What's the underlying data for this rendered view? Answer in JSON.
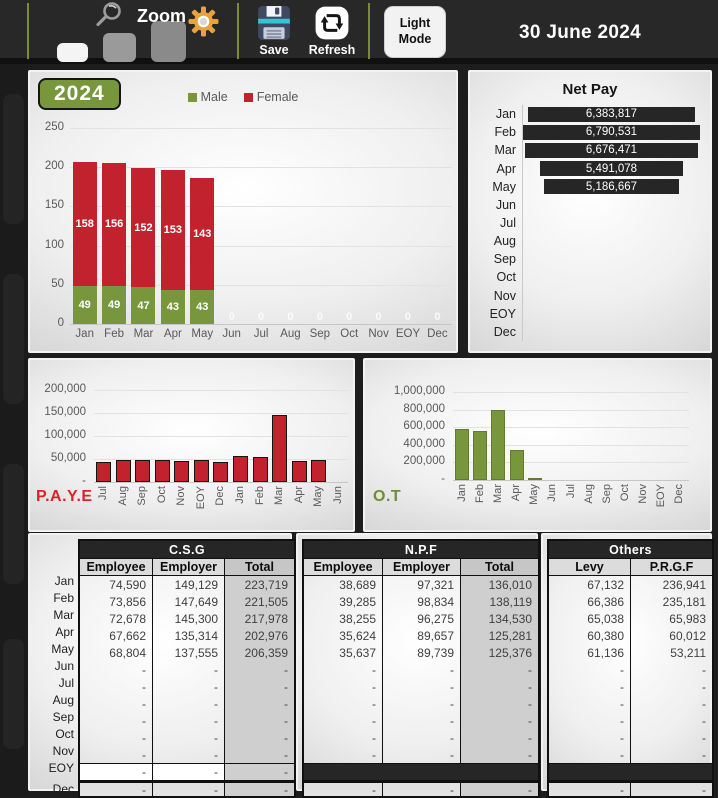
{
  "toolbar": {
    "zoom_label": "Zoom",
    "save_label": "Save",
    "refresh_label": "Refresh",
    "light_mode_label": "Light Mode",
    "date": "30 June 2024"
  },
  "colors": {
    "male_green": "#78973D",
    "female_red": "#C2222E",
    "net_pay_bar": "#262626",
    "paye_label": "#E0202A",
    "ot_label": "#6F8C36",
    "divider_olive": "#7B8D33"
  },
  "chart_data": [
    {
      "type": "bar",
      "subtype": "stacked",
      "year": "2024",
      "legend": [
        "Male",
        "Female"
      ],
      "categories": [
        "Jan",
        "Feb",
        "Mar",
        "Apr",
        "May",
        "Jun",
        "Jul",
        "Aug",
        "Sep",
        "Oct",
        "Nov",
        "EOY",
        "Dec"
      ],
      "series": [
        {
          "name": "Male",
          "color": "#78973D",
          "values": [
            49,
            49,
            47,
            43,
            43,
            0,
            0,
            0,
            0,
            0,
            0,
            0,
            0
          ]
        },
        {
          "name": "Female",
          "color": "#C2222E",
          "values": [
            158,
            156,
            152,
            153,
            143,
            0,
            0,
            0,
            0,
            0,
            0,
            0,
            0
          ]
        }
      ],
      "ylim": [
        0,
        250
      ],
      "yticks": [
        "250",
        "200",
        "150",
        "100",
        "50",
        "0"
      ]
    },
    {
      "type": "bar",
      "subtype": "funnel-horizontal",
      "title": "Net Pay",
      "categories": [
        "Jan",
        "Feb",
        "Mar",
        "Apr",
        "May",
        "Jun",
        "Jul",
        "Aug",
        "Sep",
        "Oct",
        "Nov",
        "EOY",
        "Dec"
      ],
      "values": [
        6383817,
        6790531,
        6676471,
        5491078,
        5186667,
        null,
        null,
        null,
        null,
        null,
        null,
        null,
        null
      ]
    },
    {
      "type": "bar",
      "label": "P.A.Y.E",
      "categories": [
        "Jul",
        "Aug",
        "Sep",
        "Oct",
        "Nov",
        "EOY",
        "Dec",
        "Jan",
        "Feb",
        "Mar",
        "Apr",
        "May",
        "Jun"
      ],
      "values": [
        43500,
        48500,
        48500,
        48500,
        46500,
        48500,
        44500,
        57500,
        53500,
        146000,
        46500,
        48500,
        0
      ],
      "ylim": [
        0,
        200000
      ],
      "yticks": [
        "200,000",
        "150,000",
        "100,000",
        "50,000",
        "-"
      ]
    },
    {
      "type": "bar",
      "label": "O.T",
      "categories": [
        "Jan",
        "Feb",
        "Mar",
        "Apr",
        "May",
        "Jun",
        "Jul",
        "Aug",
        "Sep",
        "Oct",
        "Nov",
        "EOY",
        "Dec"
      ],
      "values": [
        585000,
        555000,
        795000,
        345000,
        20000,
        0,
        0,
        0,
        0,
        0,
        0,
        0,
        0
      ],
      "ylim": [
        0,
        1000000
      ],
      "yticks": [
        "1,000,000",
        "800,000",
        "600,000",
        "400,000",
        "200,000",
        "-"
      ]
    }
  ],
  "tables": {
    "months": [
      "Jan",
      "Feb",
      "Mar",
      "Apr",
      "May",
      "Jun",
      "Jul",
      "Aug",
      "Sep",
      "Oct",
      "Nov",
      "EOY",
      "Dec"
    ],
    "groups": [
      {
        "title": "C.S.G",
        "columns": [
          "Employee",
          "Employer",
          "Total"
        ],
        "rows": [
          [
            "74,590",
            "149,129",
            "223,719"
          ],
          [
            "73,856",
            "147,649",
            "221,505"
          ],
          [
            "72,678",
            "145,300",
            "217,978"
          ],
          [
            "67,662",
            "135,314",
            "202,976"
          ],
          [
            "68,804",
            "137,555",
            "206,359"
          ],
          [
            "-",
            "-",
            "-"
          ],
          [
            "-",
            "-",
            "-"
          ],
          [
            "-",
            "-",
            "-"
          ],
          [
            "-",
            "-",
            "-"
          ],
          [
            "-",
            "-",
            "-"
          ],
          [
            "-",
            "-",
            "-"
          ]
        ],
        "eoy_style": "white",
        "eoy": [
          "-",
          "-",
          "-"
        ],
        "dec": [
          "-",
          "-",
          "-"
        ]
      },
      {
        "title": "N.P.F",
        "columns": [
          "Employee",
          "Employer",
          "Total"
        ],
        "rows": [
          [
            "38,689",
            "97,321",
            "136,010"
          ],
          [
            "39,285",
            "98,834",
            "138,119"
          ],
          [
            "38,255",
            "96,275",
            "134,530"
          ],
          [
            "35,624",
            "89,657",
            "125,281"
          ],
          [
            "35,637",
            "89,739",
            "125,376"
          ],
          [
            "-",
            "-",
            "-"
          ],
          [
            "-",
            "-",
            "-"
          ],
          [
            "-",
            "-",
            "-"
          ],
          [
            "-",
            "-",
            "-"
          ],
          [
            "-",
            "-",
            "-"
          ],
          [
            "-",
            "-",
            "-"
          ]
        ],
        "eoy_style": "dark",
        "eoy": [],
        "dec": [
          "-",
          "-",
          "-"
        ]
      },
      {
        "title": "Others",
        "columns": [
          "Levy",
          "P.R.G.F"
        ],
        "rows": [
          [
            "67,132",
            "236,941"
          ],
          [
            "66,386",
            "235,181"
          ],
          [
            "65,038",
            "65,983"
          ],
          [
            "60,380",
            "60,012"
          ],
          [
            "61,136",
            "53,211"
          ],
          [
            "-",
            "-"
          ],
          [
            "-",
            "-"
          ],
          [
            "-",
            "-"
          ],
          [
            "-",
            "-"
          ],
          [
            "-",
            "-"
          ],
          [
            "-",
            "-"
          ]
        ],
        "eoy_style": "dark",
        "eoy": [],
        "dec": [
          "-",
          "-"
        ]
      }
    ]
  }
}
